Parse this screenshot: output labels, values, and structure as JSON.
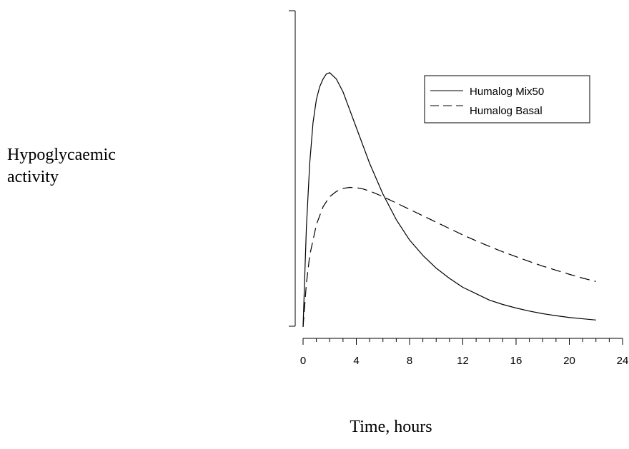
{
  "chart_data": {
    "type": "line",
    "title": "",
    "ylabel_lines": [
      "Hypoglycaemic",
      "activity"
    ],
    "xlabel": "Time, hours",
    "xlim": [
      0,
      24
    ],
    "ylim": [
      0,
      1
    ],
    "x_ticks_major": [
      0,
      4,
      8,
      12,
      16,
      20,
      24
    ],
    "x_tick_labels": [
      "0",
      "4",
      "8",
      "12",
      "16",
      "20",
      "24"
    ],
    "x_ticks_minor_step": 1,
    "y_ticks_shown": false,
    "grid": false,
    "legend_position": "top-right",
    "series": [
      {
        "name": "Humalog Mix50",
        "line_style": "solid",
        "color": "#000000",
        "x": [
          0,
          0.25,
          0.5,
          0.75,
          1,
          1.25,
          1.5,
          1.75,
          2,
          2.5,
          3,
          3.5,
          4,
          5,
          6,
          7,
          8,
          9,
          10,
          11,
          12,
          13,
          14,
          15,
          16,
          17,
          18,
          19,
          20,
          21,
          22
        ],
        "y": [
          0.0,
          0.39,
          0.64,
          0.8,
          0.89,
          0.94,
          0.97,
          0.99,
          0.995,
          0.97,
          0.92,
          0.85,
          0.78,
          0.64,
          0.52,
          0.42,
          0.34,
          0.28,
          0.23,
          0.19,
          0.155,
          0.13,
          0.105,
          0.088,
          0.074,
          0.062,
          0.052,
          0.044,
          0.037,
          0.032,
          0.027
        ]
      },
      {
        "name": "Humalog Basal",
        "line_style": "dashed",
        "color": "#000000",
        "x": [
          0,
          0.25,
          0.5,
          1,
          1.5,
          2,
          2.5,
          3,
          3.5,
          4,
          4.5,
          5,
          6,
          7,
          8,
          9,
          10,
          11,
          12,
          13,
          14,
          15,
          16,
          17,
          18,
          19,
          20,
          21,
          22
        ],
        "y": [
          0.0,
          0.17,
          0.28,
          0.4,
          0.47,
          0.51,
          0.53,
          0.542,
          0.546,
          0.545,
          0.54,
          0.532,
          0.51,
          0.485,
          0.46,
          0.435,
          0.41,
          0.385,
          0.36,
          0.337,
          0.315,
          0.294,
          0.275,
          0.256,
          0.238,
          0.222,
          0.206,
          0.191,
          0.178
        ]
      }
    ]
  }
}
